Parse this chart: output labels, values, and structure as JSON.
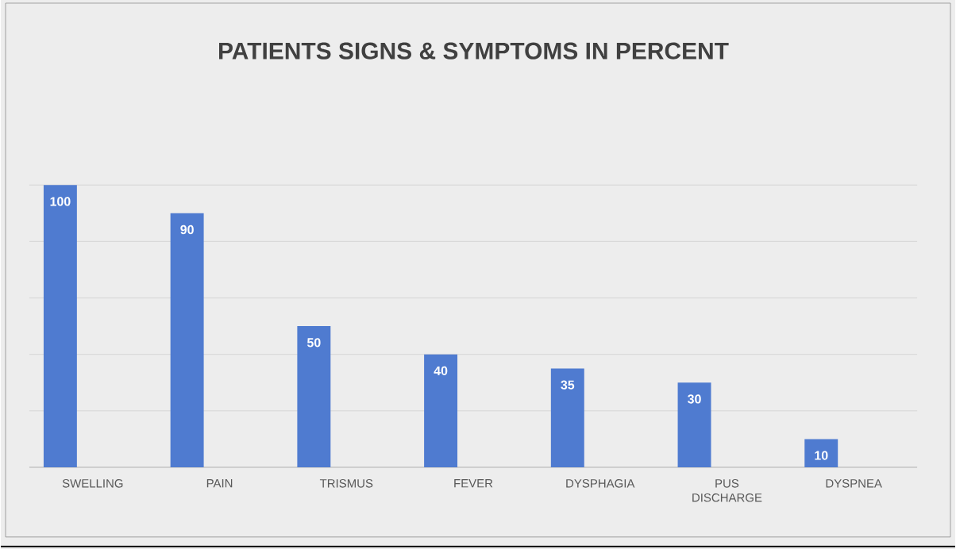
{
  "chart_data": {
    "type": "bar",
    "title": "PATIENTS SIGNS & SYMPTOMS IN PERCENT",
    "categories": [
      "SWELLING",
      "PAIN",
      "TRISMUS",
      "FEVER",
      "DYSPHAGIA",
      "PUS DISCHARGE",
      "DYSPNEA"
    ],
    "values": [
      100,
      90,
      50,
      40,
      35,
      30,
      10
    ],
    "color": "#4f7bd0",
    "tick_labels": "x",
    "grid": "y",
    "data_labels": true
  }
}
